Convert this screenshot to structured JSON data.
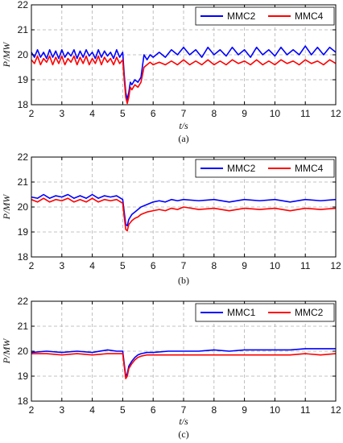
{
  "chart_data": [
    {
      "type": "line",
      "caption": "(a)",
      "xlabel": "t/s",
      "ylabel": "P/MW",
      "xlim": [
        2,
        12
      ],
      "ylim": [
        18,
        22
      ],
      "xticks": [
        2,
        3,
        4,
        5,
        6,
        7,
        8,
        9,
        10,
        11,
        12
      ],
      "yticks": [
        18,
        19,
        20,
        21,
        22
      ],
      "grid": true,
      "legend_position": "top-right",
      "series": [
        {
          "name": "MMC2",
          "color": "#0000ff",
          "x": [
            2.0,
            2.1,
            2.2,
            2.3,
            2.4,
            2.5,
            2.6,
            2.7,
            2.8,
            2.9,
            3.0,
            3.1,
            3.2,
            3.3,
            3.4,
            3.5,
            3.6,
            3.7,
            3.8,
            3.9,
            4.0,
            4.1,
            4.2,
            4.3,
            4.4,
            4.5,
            4.6,
            4.7,
            4.8,
            4.9,
            5.0,
            5.05,
            5.1,
            5.15,
            5.2,
            5.25,
            5.3,
            5.4,
            5.5,
            5.6,
            5.7,
            5.8,
            5.9,
            6.0,
            6.2,
            6.4,
            6.6,
            6.8,
            7.0,
            7.2,
            7.4,
            7.6,
            7.8,
            8.0,
            8.2,
            8.4,
            8.6,
            8.8,
            9.0,
            9.2,
            9.4,
            9.6,
            9.8,
            10.0,
            10.2,
            10.4,
            10.6,
            10.8,
            11.0,
            11.2,
            11.4,
            11.6,
            11.8,
            12.0
          ],
          "values": [
            20.1,
            19.9,
            20.2,
            19.9,
            20.1,
            19.85,
            20.2,
            19.9,
            20.15,
            19.85,
            20.2,
            19.9,
            20.1,
            19.95,
            20.2,
            19.85,
            20.15,
            19.9,
            20.2,
            19.95,
            20.1,
            19.85,
            20.2,
            19.9,
            20.15,
            19.95,
            20.1,
            19.85,
            20.2,
            19.9,
            20.1,
            19.2,
            18.5,
            18.2,
            18.5,
            18.9,
            18.8,
            19.0,
            18.9,
            19.1,
            20.0,
            19.8,
            20.0,
            19.9,
            20.1,
            19.9,
            20.2,
            20.0,
            20.3,
            20.0,
            20.2,
            19.9,
            20.3,
            20.0,
            20.2,
            19.95,
            20.3,
            20.0,
            20.2,
            19.9,
            20.3,
            20.0,
            20.2,
            19.95,
            20.3,
            20.0,
            20.2,
            20.0,
            20.35,
            20.0,
            20.3,
            20.0,
            20.3,
            20.1
          ]
        },
        {
          "name": "MMC4",
          "color": "#ff0000",
          "x": [
            2.0,
            2.1,
            2.2,
            2.3,
            2.4,
            2.5,
            2.6,
            2.7,
            2.8,
            2.9,
            3.0,
            3.1,
            3.2,
            3.3,
            3.4,
            3.5,
            3.6,
            3.7,
            3.8,
            3.9,
            4.0,
            4.1,
            4.2,
            4.3,
            4.4,
            4.5,
            4.6,
            4.7,
            4.8,
            4.9,
            5.0,
            5.05,
            5.1,
            5.15,
            5.2,
            5.25,
            5.3,
            5.4,
            5.5,
            5.6,
            5.7,
            5.8,
            5.9,
            6.0,
            6.2,
            6.4,
            6.6,
            6.8,
            7.0,
            7.2,
            7.4,
            7.6,
            7.8,
            8.0,
            8.2,
            8.4,
            8.6,
            8.8,
            9.0,
            9.2,
            9.4,
            9.6,
            9.8,
            10.0,
            10.2,
            10.4,
            10.6,
            10.8,
            11.0,
            11.2,
            11.4,
            11.6,
            11.8,
            12.0
          ],
          "values": [
            19.8,
            19.65,
            19.95,
            19.6,
            19.85,
            19.7,
            19.95,
            19.6,
            19.9,
            19.65,
            19.95,
            19.6,
            19.85,
            19.7,
            19.95,
            19.6,
            19.9,
            19.65,
            19.95,
            19.6,
            19.85,
            19.65,
            19.95,
            19.6,
            19.9,
            19.7,
            19.85,
            19.6,
            19.9,
            19.65,
            19.8,
            19.0,
            18.3,
            18.05,
            18.3,
            18.7,
            18.6,
            18.8,
            18.7,
            18.9,
            19.5,
            19.6,
            19.7,
            19.6,
            19.7,
            19.6,
            19.75,
            19.6,
            19.8,
            19.6,
            19.75,
            19.6,
            19.8,
            19.6,
            19.75,
            19.6,
            19.8,
            19.65,
            19.75,
            19.6,
            19.8,
            19.6,
            19.75,
            19.6,
            19.8,
            19.65,
            19.75,
            19.6,
            19.8,
            19.65,
            19.75,
            19.6,
            19.8,
            19.65
          ]
        }
      ]
    },
    {
      "type": "line",
      "caption": "(b)",
      "xlabel": "",
      "ylabel": "P/MW",
      "xlim": [
        2,
        12
      ],
      "ylim": [
        18,
        22
      ],
      "xticks": [
        2,
        3,
        4,
        5,
        6,
        7,
        8,
        9,
        10,
        11,
        12
      ],
      "yticks": [
        18,
        19,
        20,
        21,
        22
      ],
      "grid": true,
      "legend_position": "top-right",
      "series": [
        {
          "name": "MMC2",
          "color": "#0000ff",
          "x": [
            2.0,
            2.2,
            2.4,
            2.6,
            2.8,
            3.0,
            3.2,
            3.4,
            3.6,
            3.8,
            4.0,
            4.2,
            4.4,
            4.6,
            4.8,
            5.0,
            5.05,
            5.1,
            5.15,
            5.2,
            5.3,
            5.4,
            5.5,
            5.6,
            5.8,
            6.0,
            6.2,
            6.4,
            6.6,
            6.8,
            7.0,
            7.5,
            8.0,
            8.5,
            9.0,
            9.5,
            10.0,
            10.5,
            11.0,
            11.5,
            12.0
          ],
          "values": [
            20.4,
            20.35,
            20.5,
            20.35,
            20.45,
            20.4,
            20.5,
            20.35,
            20.45,
            20.35,
            20.5,
            20.35,
            20.45,
            20.4,
            20.45,
            20.3,
            19.8,
            19.3,
            19.25,
            19.5,
            19.7,
            19.8,
            19.9,
            20.0,
            20.1,
            20.2,
            20.25,
            20.2,
            20.3,
            20.25,
            20.3,
            20.25,
            20.3,
            20.2,
            20.3,
            20.25,
            20.3,
            20.2,
            20.3,
            20.25,
            20.3
          ]
        },
        {
          "name": "MMC4",
          "color": "#ff0000",
          "x": [
            2.0,
            2.2,
            2.4,
            2.6,
            2.8,
            3.0,
            3.2,
            3.4,
            3.6,
            3.8,
            4.0,
            4.2,
            4.4,
            4.6,
            4.8,
            5.0,
            5.05,
            5.1,
            5.15,
            5.2,
            5.3,
            5.4,
            5.5,
            5.6,
            5.8,
            6.0,
            6.2,
            6.4,
            6.6,
            6.8,
            7.0,
            7.5,
            8.0,
            8.5,
            9.0,
            9.5,
            10.0,
            10.5,
            11.0,
            11.5,
            12.0
          ],
          "values": [
            20.3,
            20.2,
            20.35,
            20.2,
            20.3,
            20.25,
            20.35,
            20.2,
            20.3,
            20.2,
            20.35,
            20.2,
            20.3,
            20.25,
            20.3,
            20.15,
            19.6,
            19.1,
            19.05,
            19.3,
            19.45,
            19.55,
            19.6,
            19.7,
            19.8,
            19.85,
            19.9,
            19.85,
            19.95,
            19.9,
            20.0,
            19.9,
            19.95,
            19.85,
            19.95,
            19.9,
            19.95,
            19.85,
            19.95,
            19.9,
            19.95
          ]
        }
      ]
    },
    {
      "type": "line",
      "caption": "(c)",
      "xlabel": "t/s",
      "ylabel": "P/MW",
      "xlim": [
        2,
        12
      ],
      "ylim": [
        18,
        22
      ],
      "xticks": [
        2,
        3,
        4,
        5,
        6,
        7,
        8,
        9,
        10,
        11,
        12
      ],
      "yticks": [
        18,
        19,
        20,
        21,
        22
      ],
      "grid": true,
      "legend_position": "top-right",
      "series": [
        {
          "name": "MMC1",
          "color": "#0000ff",
          "x": [
            2.0,
            2.5,
            3.0,
            3.5,
            4.0,
            4.5,
            4.8,
            5.0,
            5.05,
            5.1,
            5.15,
            5.2,
            5.3,
            5.4,
            5.5,
            5.6,
            5.8,
            6.0,
            6.5,
            7.0,
            7.5,
            8.0,
            8.5,
            9.0,
            9.5,
            10.0,
            10.5,
            11.0,
            11.5,
            12.0
          ],
          "values": [
            19.95,
            20.0,
            19.95,
            20.0,
            19.95,
            20.05,
            20.0,
            20.0,
            19.5,
            19.0,
            19.1,
            19.4,
            19.6,
            19.75,
            19.85,
            19.9,
            19.95,
            19.95,
            20.0,
            20.0,
            20.0,
            20.05,
            20.0,
            20.05,
            20.05,
            20.05,
            20.05,
            20.1,
            20.1,
            20.1
          ]
        },
        {
          "name": "MMC2",
          "color": "#ff0000",
          "x": [
            2.0,
            2.5,
            3.0,
            3.5,
            4.0,
            4.5,
            4.8,
            5.0,
            5.05,
            5.1,
            5.15,
            5.2,
            5.3,
            5.4,
            5.5,
            5.6,
            5.8,
            6.0,
            6.5,
            7.0,
            7.5,
            8.0,
            8.5,
            9.0,
            9.5,
            10.0,
            10.5,
            11.0,
            11.5,
            12.0
          ],
          "values": [
            19.9,
            19.9,
            19.85,
            19.9,
            19.85,
            19.9,
            19.9,
            19.9,
            19.4,
            18.9,
            19.0,
            19.3,
            19.5,
            19.65,
            19.75,
            19.8,
            19.85,
            19.85,
            19.85,
            19.85,
            19.85,
            19.85,
            19.85,
            19.85,
            19.85,
            19.85,
            19.85,
            19.9,
            19.85,
            19.9
          ]
        }
      ]
    }
  ]
}
